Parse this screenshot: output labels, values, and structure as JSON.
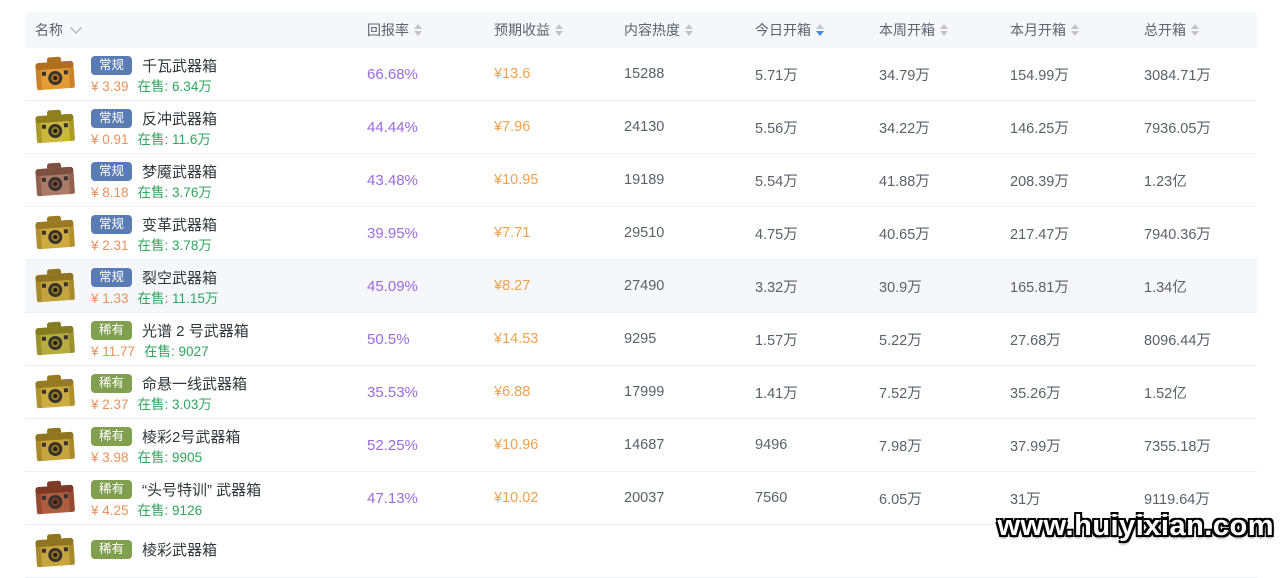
{
  "watermark": "www.huiyixian.com",
  "colors": {
    "accent_blue": "#3e8ef0",
    "return_rate_purple": "#9b6cdb",
    "expected_orange": "#f0a14c",
    "price_orange": "#ee9059",
    "stock_green": "#31a45f",
    "badge_regular_blue": "#5a7cb5",
    "badge_rare_green": "#80a04f",
    "header_bg": "#f5f7fa"
  },
  "table": {
    "stock_label": "在售:",
    "columns": [
      {
        "label": "名称",
        "type": "name"
      },
      {
        "label": "回报率",
        "sortable": true
      },
      {
        "label": "预期收益",
        "sortable": true
      },
      {
        "label": "内容热度",
        "sortable": true
      },
      {
        "label": "今日开箱",
        "sortable": true,
        "active_sort": "desc"
      },
      {
        "label": "本周开箱",
        "sortable": true
      },
      {
        "label": "本月开箱",
        "sortable": true
      },
      {
        "label": "总开箱",
        "sortable": true
      }
    ],
    "rows": [
      {
        "badge": "常规",
        "rarity": "regular",
        "name": "千瓦武器箱",
        "price": "¥ 3.39",
        "stock": "6.34万",
        "rate": "66.68%",
        "expected": "¥13.6",
        "heat": "15288",
        "today": "5.71万",
        "week": "34.79万",
        "month": "154.99万",
        "total": "3084.71万",
        "highlight": false,
        "icon": {
          "body": "#e59c35",
          "dark": "#b06f1f"
        }
      },
      {
        "badge": "常规",
        "rarity": "regular",
        "name": "反冲武器箱",
        "price": "¥ 0.91",
        "stock": "11.6万",
        "rate": "44.44%",
        "expected": "¥7.96",
        "heat": "24130",
        "today": "5.56万",
        "week": "34.22万",
        "month": "146.25万",
        "total": "7936.05万",
        "highlight": false,
        "icon": {
          "body": "#c9b83b",
          "dark": "#8f7f1f"
        }
      },
      {
        "badge": "常规",
        "rarity": "regular",
        "name": "梦魇武器箱",
        "price": "¥ 8.18",
        "stock": "3.76万",
        "rate": "43.48%",
        "expected": "¥10.95",
        "heat": "19189",
        "today": "5.54万",
        "week": "41.88万",
        "month": "208.39万",
        "total": "1.23亿",
        "highlight": false,
        "icon": {
          "body": "#ab7a68",
          "dark": "#7d4f3e"
        }
      },
      {
        "badge": "常规",
        "rarity": "regular",
        "name": "变革武器箱",
        "price": "¥ 2.31",
        "stock": "3.78万",
        "rate": "39.95%",
        "expected": "¥7.71",
        "heat": "29510",
        "today": "4.75万",
        "week": "40.65万",
        "month": "217.47万",
        "total": "7940.36万",
        "highlight": false,
        "icon": {
          "body": "#cfab3e",
          "dark": "#997a22"
        }
      },
      {
        "badge": "常规",
        "rarity": "regular",
        "name": "裂空武器箱",
        "price": "¥ 1.33",
        "stock": "11.15万",
        "rate": "45.09%",
        "expected": "¥8.27",
        "heat": "27490",
        "today": "3.32万",
        "week": "30.9万",
        "month": "165.81万",
        "total": "1.34亿",
        "highlight": true,
        "icon": {
          "body": "#c3a43c",
          "dark": "#8e7420"
        }
      },
      {
        "badge": "稀有",
        "rarity": "rare",
        "name": "光谱 2 号武器箱",
        "price": "¥ 11.77",
        "stock": "9027",
        "rate": "50.5%",
        "expected": "¥14.53",
        "heat": "9295",
        "today": "1.57万",
        "week": "5.22万",
        "month": "27.68万",
        "total": "8096.44万",
        "highlight": false,
        "icon": {
          "body": "#b7ad3e",
          "dark": "#837c20"
        }
      },
      {
        "badge": "稀有",
        "rarity": "rare",
        "name": "命悬一线武器箱",
        "price": "¥ 2.37",
        "stock": "3.03万",
        "rate": "35.53%",
        "expected": "¥6.88",
        "heat": "17999",
        "today": "1.41万",
        "week": "7.52万",
        "month": "35.26万",
        "total": "1.52亿",
        "highlight": false,
        "icon": {
          "body": "#ccab3f",
          "dark": "#967a22"
        }
      },
      {
        "badge": "稀有",
        "rarity": "rare",
        "name": "棱彩2号武器箱",
        "price": "¥ 3.98",
        "stock": "9905",
        "rate": "52.25%",
        "expected": "¥10.96",
        "heat": "14687",
        "today": "9496",
        "week": "7.98万",
        "month": "37.99万",
        "total": "7355.18万",
        "highlight": false,
        "icon": {
          "body": "#c6a53c",
          "dark": "#8f7520"
        }
      },
      {
        "badge": "稀有",
        "rarity": "rare",
        "name": "“头号特训” 武器箱",
        "price": "¥ 4.25",
        "stock": "9126",
        "rate": "47.13%",
        "expected": "¥10.02",
        "heat": "20037",
        "today": "7560",
        "week": "6.05万",
        "month": "31万",
        "total": "9119.64万",
        "highlight": false,
        "icon": {
          "body": "#b05c3e",
          "dark": "#7d3a26"
        }
      },
      {
        "badge": "稀有",
        "rarity": "rare",
        "name": "棱彩武器箱",
        "price": "",
        "stock": "",
        "rate": "",
        "expected": "",
        "heat": "",
        "today": "",
        "week": "",
        "month": "",
        "total": "",
        "highlight": false,
        "icon": {
          "body": "#c6a53c",
          "dark": "#8f7520"
        }
      }
    ]
  }
}
